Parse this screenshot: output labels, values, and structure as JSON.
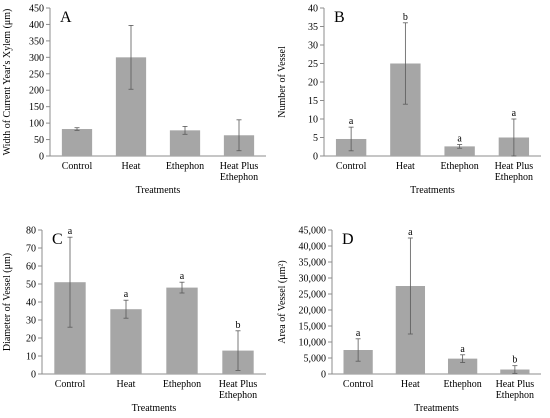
{
  "figure": {
    "bar_color": "#a6a6a6",
    "axis_color": "#8c8c8c",
    "errorbar_color": "#595959"
  },
  "chart_data": [
    {
      "type": "bar",
      "panel_label": "A",
      "categories": [
        "Control",
        "Heat",
        "Ethephon",
        "Heat Plus Ethephon"
      ],
      "category_lines": [
        [
          "Control"
        ],
        [
          "Heat"
        ],
        [
          "Ethephon"
        ],
        [
          "Heat Plus",
          "Ethephon"
        ]
      ],
      "values": [
        82,
        300,
        78,
        63
      ],
      "errors": [
        4,
        97,
        12,
        47
      ],
      "letters": [
        "",
        "",
        "",
        ""
      ],
      "xlabel": "Treatments",
      "ylabel": "Width of Current Year's Xylem (μm)",
      "ylim": [
        0,
        450
      ],
      "yticks": [
        0,
        50,
        100,
        150,
        200,
        250,
        300,
        350,
        400,
        450
      ],
      "ytick_labels": [
        "0",
        "50",
        "100",
        "150",
        "200",
        "250",
        "300",
        "350",
        "400",
        "450"
      ],
      "grid": false,
      "legend": "none"
    },
    {
      "type": "bar",
      "panel_label": "B",
      "categories": [
        "Control",
        "Heat",
        "Ethephon",
        "Heat Plus Ethephon"
      ],
      "category_lines": [
        [
          "Control"
        ],
        [
          "Heat"
        ],
        [
          "Ethephon"
        ],
        [
          "Heat Plus",
          "Ethephon"
        ]
      ],
      "values": [
        4.6,
        25,
        2.6,
        5
      ],
      "errors": [
        3.2,
        11,
        0.5,
        5
      ],
      "letters": [
        "a",
        "b",
        "a",
        "a"
      ],
      "xlabel": "Treatments",
      "ylabel": "Number of Vessel",
      "ylim": [
        0,
        40
      ],
      "yticks": [
        0,
        5,
        10,
        15,
        20,
        25,
        30,
        35,
        40
      ],
      "ytick_labels": [
        "0",
        "5",
        "10",
        "15",
        "20",
        "25",
        "30",
        "35",
        "40"
      ],
      "grid": false,
      "legend": "none"
    },
    {
      "type": "bar",
      "panel_label": "C",
      "categories": [
        "Control",
        "Heat",
        "Ethephon",
        "Heat Plus Ethephon"
      ],
      "category_lines": [
        [
          "Control"
        ],
        [
          "Heat"
        ],
        [
          "Ethephon"
        ],
        [
          "Heat Plus",
          "Ethephon"
        ]
      ],
      "values": [
        51,
        36,
        48,
        13
      ],
      "errors": [
        25,
        5,
        3,
        11
      ],
      "letters": [
        "a",
        "a",
        "a",
        "b"
      ],
      "xlabel": "Treatments",
      "ylabel": "Diameter of Vessel (μm)",
      "ylim": [
        0,
        80
      ],
      "yticks": [
        0,
        10,
        20,
        30,
        40,
        50,
        60,
        70,
        80
      ],
      "ytick_labels": [
        "0",
        "10",
        "20",
        "30",
        "40",
        "50",
        "60",
        "70",
        "80"
      ],
      "grid": false,
      "legend": "none"
    },
    {
      "type": "bar",
      "panel_label": "D",
      "categories": [
        "Control",
        "Heat",
        "Ethephon",
        "Heat Plus Ethephon"
      ],
      "category_lines": [
        [
          "Control"
        ],
        [
          "Heat"
        ],
        [
          "Ethephon"
        ],
        [
          "Heat Plus",
          "Ethephon"
        ]
      ],
      "values": [
        7500,
        27500,
        4800,
        1400
      ],
      "errors": [
        3500,
        15000,
        1200,
        1200
      ],
      "letters": [
        "a",
        "a",
        "a",
        "b"
      ],
      "xlabel": "Treatments",
      "ylabel": "Area of Vessel (μm²)",
      "ylim": [
        0,
        45000
      ],
      "yticks": [
        0,
        5000,
        10000,
        15000,
        20000,
        25000,
        30000,
        35000,
        40000,
        45000
      ],
      "ytick_labels": [
        "0",
        "5,000",
        "10,000",
        "15,000",
        "20,000",
        "25,000",
        "30,000",
        "35,000",
        "40,000",
        "45,000"
      ],
      "grid": false,
      "legend": "none"
    }
  ]
}
